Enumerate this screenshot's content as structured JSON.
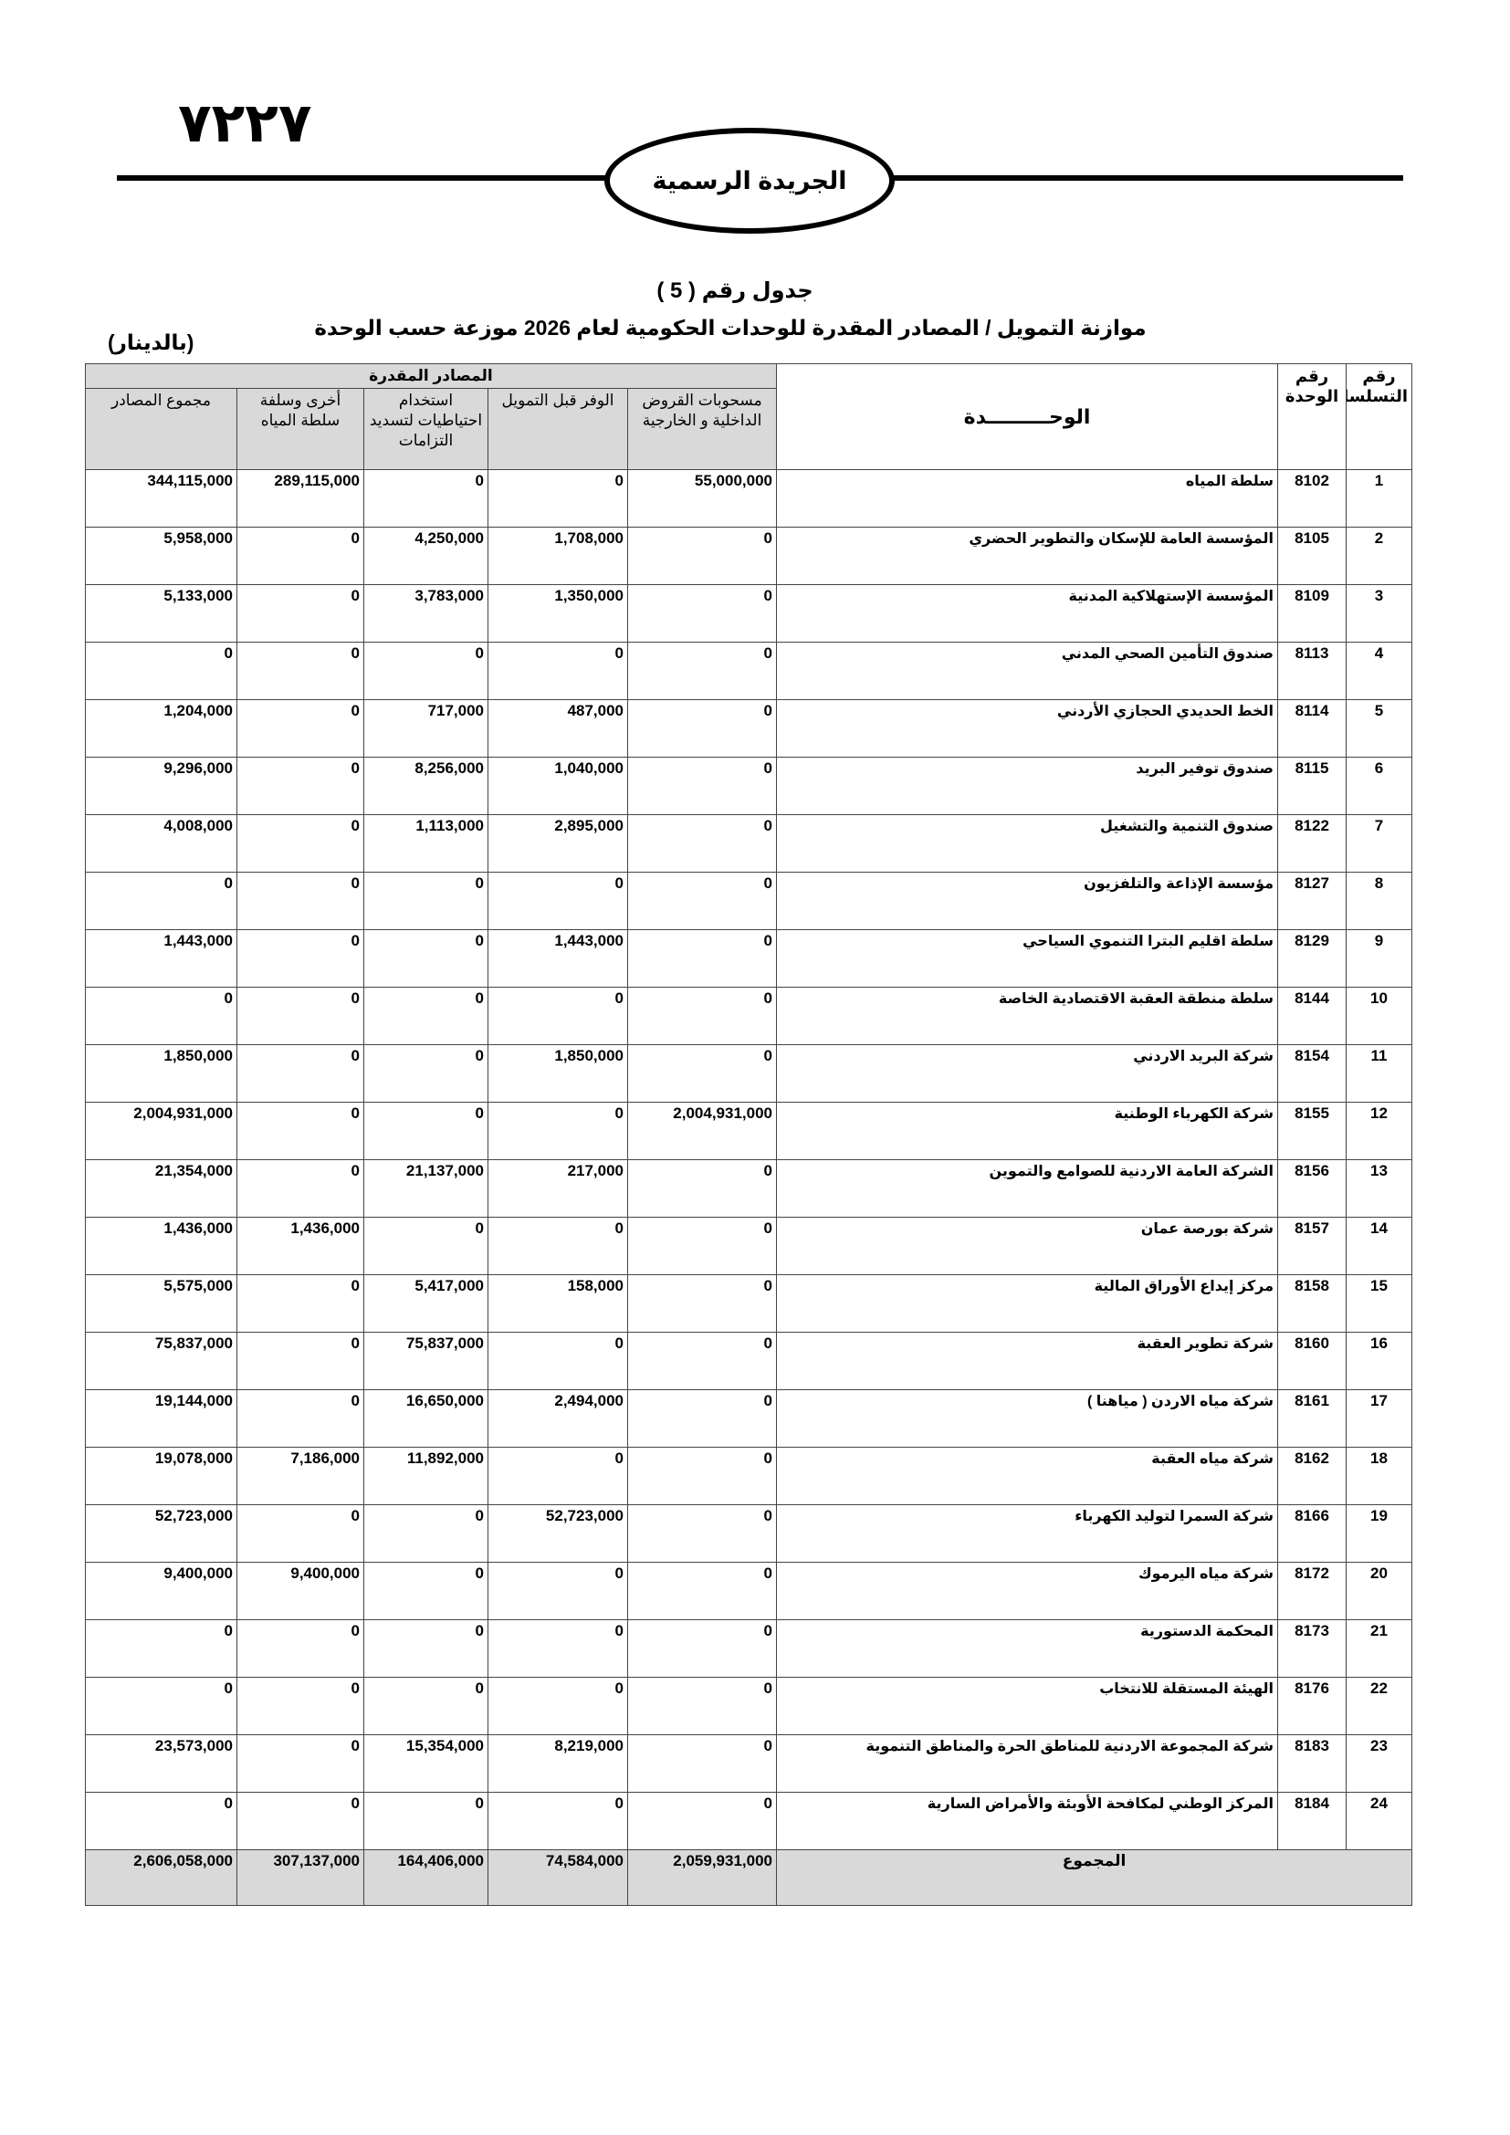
{
  "header": {
    "page_number": "٧٢٢٧",
    "gazette": "الجريدة الرسمية"
  },
  "table_title": "جدول رقم ( 5 )",
  "subtitle": "موازنة التمويل / المصادر المقدرة للوحدات الحكومية لعام 2026  موزعة حسب الوحدة",
  "currency_note": "(بالدينار)",
  "table": {
    "group_header": "المصادر المقدرة",
    "columns": [
      "رقم التسلسل",
      "رقم الوحدة",
      "الوحـــــــــدة",
      "مسحوبات القروض الداخلية و الخارجية",
      "الوفر قبل التمويل",
      "استخدام احتياطيات لتسديد التزامات",
      "أخرى وسلفة سلطة المياه",
      "مجموع المصادر"
    ],
    "rows": [
      [
        "1",
        "8102",
        "سلطة المياه",
        "55,000,000",
        "0",
        "0",
        "289,115,000",
        "344,115,000"
      ],
      [
        "2",
        "8105",
        "المؤسسة العامة للإسكان والتطوير الحضري",
        "0",
        "1,708,000",
        "4,250,000",
        "0",
        "5,958,000"
      ],
      [
        "3",
        "8109",
        "المؤسسة الإستهلاكية المدنية",
        "0",
        "1,350,000",
        "3,783,000",
        "0",
        "5,133,000"
      ],
      [
        "4",
        "8113",
        "صندوق التأمين الصحي المدني",
        "0",
        "0",
        "0",
        "0",
        "0"
      ],
      [
        "5",
        "8114",
        "الخط الحديدي الحجازي الأردني",
        "0",
        "487,000",
        "717,000",
        "0",
        "1,204,000"
      ],
      [
        "6",
        "8115",
        "صندوق توفير البريد",
        "0",
        "1,040,000",
        "8,256,000",
        "0",
        "9,296,000"
      ],
      [
        "7",
        "8122",
        "صندوق التنمية والتشغيل",
        "0",
        "2,895,000",
        "1,113,000",
        "0",
        "4,008,000"
      ],
      [
        "8",
        "8127",
        "مؤسسة الإذاعة والتلفزيون",
        "0",
        "0",
        "0",
        "0",
        "0"
      ],
      [
        "9",
        "8129",
        "سلطة اقليم البترا التنموي السياحي",
        "0",
        "1,443,000",
        "0",
        "0",
        "1,443,000"
      ],
      [
        "10",
        "8144",
        "سلطة منطقة العقبة الاقتصادية الخاصة",
        "0",
        "0",
        "0",
        "0",
        "0"
      ],
      [
        "11",
        "8154",
        "شركة البريد الاردني",
        "0",
        "1,850,000",
        "0",
        "0",
        "1,850,000"
      ],
      [
        "12",
        "8155",
        "شركة الكهرباء الوطنية",
        "2,004,931,000",
        "0",
        "0",
        "0",
        "2,004,931,000"
      ],
      [
        "13",
        "8156",
        "الشركة العامة الاردنية للصوامع والتموين",
        "0",
        "217,000",
        "21,137,000",
        "0",
        "21,354,000"
      ],
      [
        "14",
        "8157",
        "شركة بورصة عمان",
        "0",
        "0",
        "0",
        "1,436,000",
        "1,436,000"
      ],
      [
        "15",
        "8158",
        "مركز إيداع الأوراق المالية",
        "0",
        "158,000",
        "5,417,000",
        "0",
        "5,575,000"
      ],
      [
        "16",
        "8160",
        "شركة تطوير العقبة",
        "0",
        "0",
        "75,837,000",
        "0",
        "75,837,000"
      ],
      [
        "17",
        "8161",
        "شركة مياه الاردن ( مياهنا )",
        "0",
        "2,494,000",
        "16,650,000",
        "0",
        "19,144,000"
      ],
      [
        "18",
        "8162",
        "شركة مياه العقبة",
        "0",
        "0",
        "11,892,000",
        "7,186,000",
        "19,078,000"
      ],
      [
        "19",
        "8166",
        "شركة السمرا لتوليد الكهرباء",
        "0",
        "52,723,000",
        "0",
        "0",
        "52,723,000"
      ],
      [
        "20",
        "8172",
        "شركة مياه اليرموك",
        "0",
        "0",
        "0",
        "9,400,000",
        "9,400,000"
      ],
      [
        "21",
        "8173",
        "المحكمة الدستورية",
        "0",
        "0",
        "0",
        "0",
        "0"
      ],
      [
        "22",
        "8176",
        "الهيئة المستقلة للانتخاب",
        "0",
        "0",
        "0",
        "0",
        "0"
      ],
      [
        "23",
        "8183",
        "شركة المجموعة الاردنية للمناطق الحرة والمناطق التنموية",
        "0",
        "8,219,000",
        "15,354,000",
        "0",
        "23,573,000"
      ],
      [
        "24",
        "8184",
        "المركز الوطني لمكافحة الأوبئة والأمراض السارية",
        "0",
        "0",
        "0",
        "0",
        "0"
      ]
    ],
    "total": {
      "label": "المجموع",
      "values": [
        "2,059,931,000",
        "74,584,000",
        "164,406,000",
        "307,137,000",
        "2,606,058,000"
      ]
    }
  }
}
